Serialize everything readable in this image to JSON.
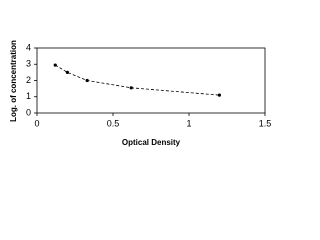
{
  "chart_data": {
    "type": "line",
    "x_label": "Optical Density",
    "y_label": "Log. of concentration",
    "x": [
      0.12,
      0.2,
      0.33,
      0.62,
      1.2
    ],
    "values": [
      2.95,
      2.5,
      2.0,
      1.55,
      1.1
    ],
    "color": "#000000",
    "xlim": [
      0,
      1.5
    ],
    "xticks": [
      0,
      0.5,
      1,
      1.5
    ],
    "ylim": [
      0,
      4
    ],
    "yticks": [
      0,
      1,
      2,
      3,
      4
    ],
    "dashed": true
  }
}
